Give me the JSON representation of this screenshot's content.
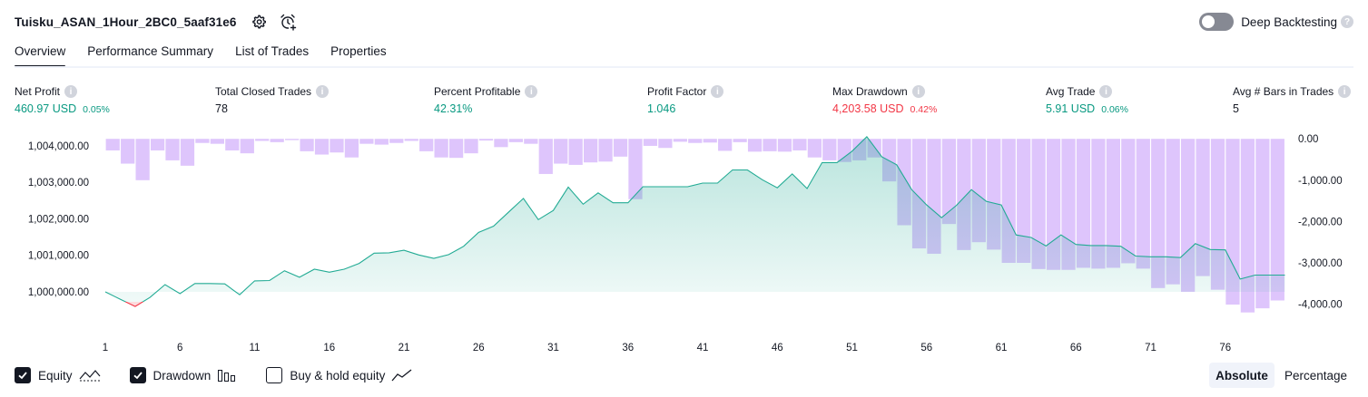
{
  "header": {
    "strategy_title": "Tuisku_ASAN_1Hour_2BC0_5aaf31e6",
    "settings_icon": "gear-icon",
    "alert_icon": "add-alert-clock-icon",
    "deep_backtesting_label": "Deep Backtesting",
    "deep_backtesting_enabled": false
  },
  "tabs": [
    {
      "label": "Overview",
      "active": true
    },
    {
      "label": "Performance Summary",
      "active": false
    },
    {
      "label": "List of Trades",
      "active": false
    },
    {
      "label": "Properties",
      "active": false
    }
  ],
  "metrics": [
    {
      "label": "Net Profit",
      "value": "460.97 USD",
      "pct": "0.05%",
      "tone": "pos"
    },
    {
      "label": "Total Closed Trades",
      "value": "78",
      "pct": "",
      "tone": "neutral"
    },
    {
      "label": "Percent Profitable",
      "value": "42.31%",
      "pct": "",
      "tone": "pos"
    },
    {
      "label": "Profit Factor",
      "value": "1.046",
      "pct": "",
      "tone": "pos"
    },
    {
      "label": "Max Drawdown",
      "value": "4,203.58 USD",
      "pct": "0.42%",
      "tone": "neg"
    },
    {
      "label": "Avg Trade",
      "value": "5.91 USD",
      "pct": "0.06%",
      "tone": "pos"
    },
    {
      "label": "Avg # Bars in Trades",
      "value": "5",
      "pct": "",
      "tone": "neutral"
    }
  ],
  "legend": {
    "equity_label": "Equity",
    "equity_checked": true,
    "drawdown_label": "Drawdown",
    "drawdown_checked": true,
    "buyhold_label": "Buy & hold equity",
    "buyhold_checked": false
  },
  "modes": [
    {
      "label": "Absolute",
      "active": true
    },
    {
      "label": "Percentage",
      "active": false
    }
  ],
  "colors": {
    "profit": "#089981",
    "loss": "#f23645",
    "equity_line": "#22ab94",
    "drawdown_fill": "#d9bdfc",
    "text": "#131722"
  },
  "chart_data": {
    "type": "area",
    "x_ticks": [
      1,
      6,
      11,
      16,
      21,
      26,
      31,
      36,
      41,
      46,
      51,
      56,
      61,
      66,
      71,
      76
    ],
    "y_left_ticks": [
      "1,000,000.00",
      "1,001,000.00",
      "1,002,000.00",
      "1,003,000.00",
      "1,004,000.00"
    ],
    "y_left_range": [
      999380,
      1004270
    ],
    "y_right_ticks": [
      "0.00",
      "-1,000.00",
      "-2,000.00",
      "-3,000.00",
      "-4,000.00"
    ],
    "y_right_range": [
      -4250,
      70
    ],
    "baseline": 1000000,
    "series": [
      {
        "name": "Equity",
        "type": "line",
        "values": [
          1000000,
          999800,
          999600,
          999850,
          1000200,
          999950,
          1000230,
          1000230,
          1000220,
          999920,
          1000300,
          1000310,
          1000580,
          1000400,
          1000620,
          1000540,
          1000620,
          1000780,
          1001060,
          1001070,
          1001140,
          1001010,
          1000920,
          1001020,
          1001250,
          1001630,
          1001800,
          1002180,
          1002560,
          1001980,
          1002230,
          1002870,
          1002400,
          1002710,
          1002440,
          1002440,
          1002880,
          1002880,
          1002880,
          1002880,
          1002980,
          1002980,
          1003340,
          1003340,
          1003070,
          1002850,
          1003230,
          1002830,
          1003540,
          1003540,
          1003850,
          1004250,
          1003700,
          1003480,
          1002800,
          1002380,
          1002030,
          1002370,
          1002800,
          1002480,
          1002380,
          1001560,
          1001490,
          1001260,
          1001560,
          1001300,
          1001270,
          1001270,
          1001250,
          1000980,
          1000960,
          1000960,
          1000940,
          1001320,
          1001160,
          1001150,
          1000350,
          1000460,
          1000460,
          1000460
        ]
      },
      {
        "name": "Drawdown",
        "type": "bar",
        "values": [
          -280,
          -600,
          -1000,
          -280,
          -520,
          -650,
          -100,
          -120,
          -280,
          -350,
          -50,
          -80,
          -30,
          -300,
          -380,
          -330,
          -450,
          -120,
          -140,
          -100,
          -50,
          -300,
          -450,
          -460,
          -350,
          -40,
          -200,
          -80,
          -120,
          -850,
          -600,
          -630,
          -570,
          -550,
          -430,
          -1460,
          -170,
          -220,
          -70,
          -100,
          -90,
          -290,
          -80,
          -310,
          -300,
          -310,
          -280,
          -450,
          -520,
          -560,
          -520,
          -450,
          -1030,
          -2090,
          -2650,
          -2780,
          -2060,
          -2690,
          -2500,
          -2680,
          -3000,
          -3000,
          -3150,
          -3170,
          -3170,
          -3120,
          -3140,
          -3120,
          -3010,
          -3140,
          -3610,
          -3520,
          -3700,
          -3320,
          -3650,
          -4010,
          -4200,
          -4100,
          -3910
        ]
      }
    ]
  }
}
